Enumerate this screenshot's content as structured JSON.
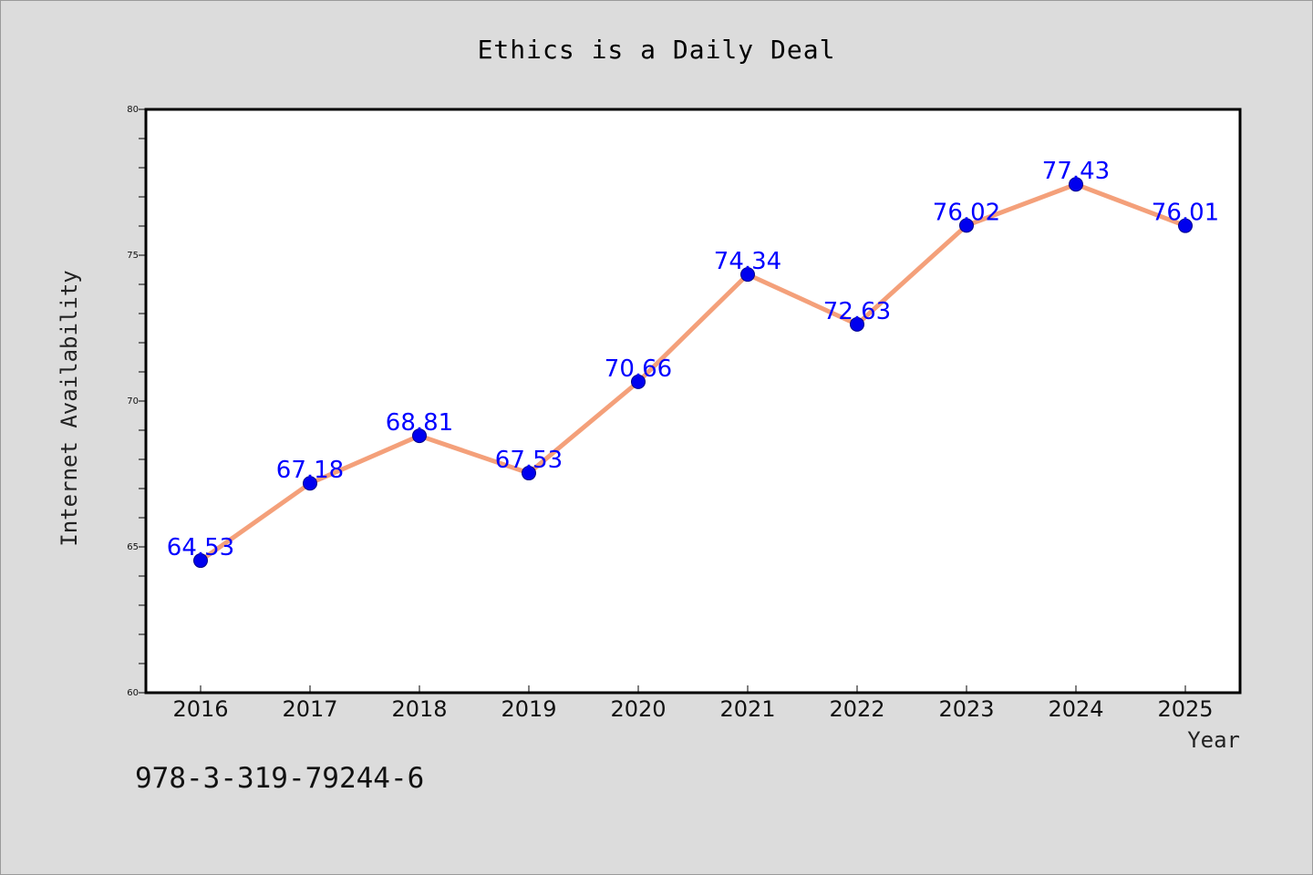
{
  "chart_data": {
    "type": "line",
    "title": "Ethics is a Daily Deal",
    "xlabel": "Year",
    "ylabel": "Internet Availability",
    "x": [
      "2016",
      "2017",
      "2018",
      "2019",
      "2020",
      "2021",
      "2022",
      "2023",
      "2024",
      "2025"
    ],
    "series": [
      {
        "values": [
          64.53,
          67.18,
          68.81,
          67.53,
          70.66,
          74.34,
          72.63,
          76.02,
          77.43,
          76.01
        ],
        "line_color": "#f4a07a",
        "marker_color": "#0000ee",
        "label_color": "#0000ff"
      }
    ],
    "data_labels": [
      "64.53",
      "67.18",
      "68.81",
      "67.53",
      "70.66",
      "74.34",
      "72.63",
      "76.02",
      "77.43",
      "76.01"
    ],
    "ylim": [
      60,
      80
    ],
    "yticks": [
      "60",
      "65",
      "70",
      "75",
      "80"
    ],
    "grid": false,
    "legend": "none"
  },
  "footer": {
    "code": "978-3-319-79244-6"
  },
  "colors": {
    "background": "#dcdcdc",
    "plot_background": "#ffffff"
  }
}
